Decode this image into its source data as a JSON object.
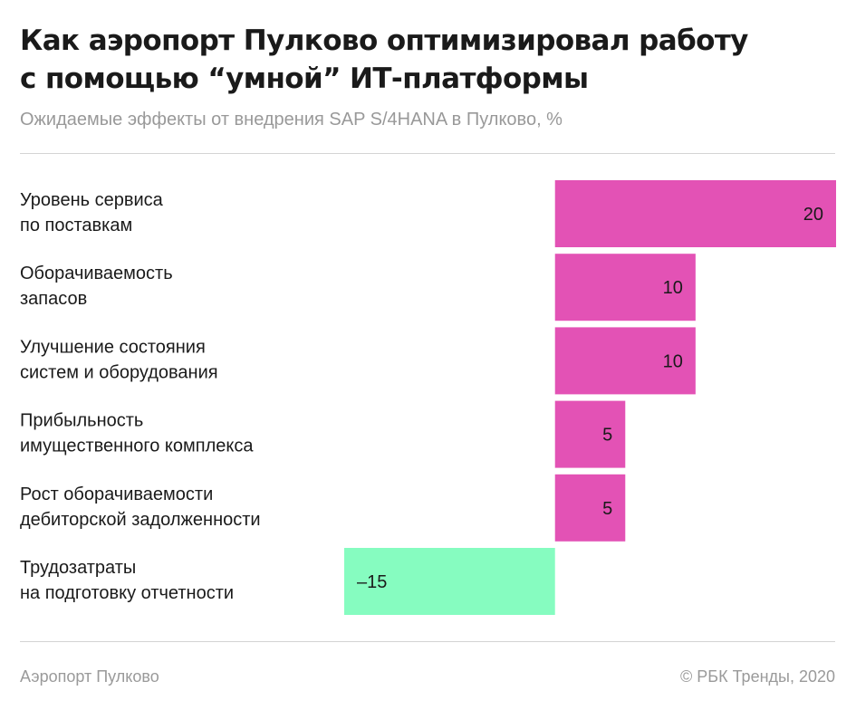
{
  "header": {
    "title_line1": "Как аэропорт Пулково оптимизировал работу",
    "title_line2": "с помощью “умной” ИТ-платформы",
    "subtitle": "Ожидаемые эффекты от внедрения SAP S/4HANA в Пулково, %"
  },
  "chart_data": {
    "type": "bar",
    "orientation": "horizontal",
    "title": "Как аэропорт Пулково оптимизировал работу с помощью “умной” ИТ-платформы",
    "subtitle": "Ожидаемые эффекты от внедрения SAP S/4HANA в Пулково, %",
    "categories": [
      [
        "Уровень сервиса",
        "по поставкам"
      ],
      [
        "Оборачиваемость",
        "запасов"
      ],
      [
        "Улучшение состояния",
        "систем и оборудования"
      ],
      [
        "Прибыльность",
        "имущественного комплекса"
      ],
      [
        "Рост оборачиваемости",
        "дебиторской задолженности"
      ],
      [
        "Трудозатраты",
        "на подготовку отчетности"
      ]
    ],
    "values": [
      20,
      10,
      10,
      5,
      5,
      -15
    ],
    "value_labels": [
      "20",
      "10",
      "10",
      "5",
      "5",
      "–15"
    ],
    "xlim": [
      -15,
      20
    ],
    "grid": false,
    "legend": "none",
    "colors": {
      "positive": "#e352b5",
      "negative": "#86fcc0"
    }
  },
  "footer": {
    "source": "Аэропорт Пулково",
    "copyright": "© РБК Тренды, 2020"
  }
}
